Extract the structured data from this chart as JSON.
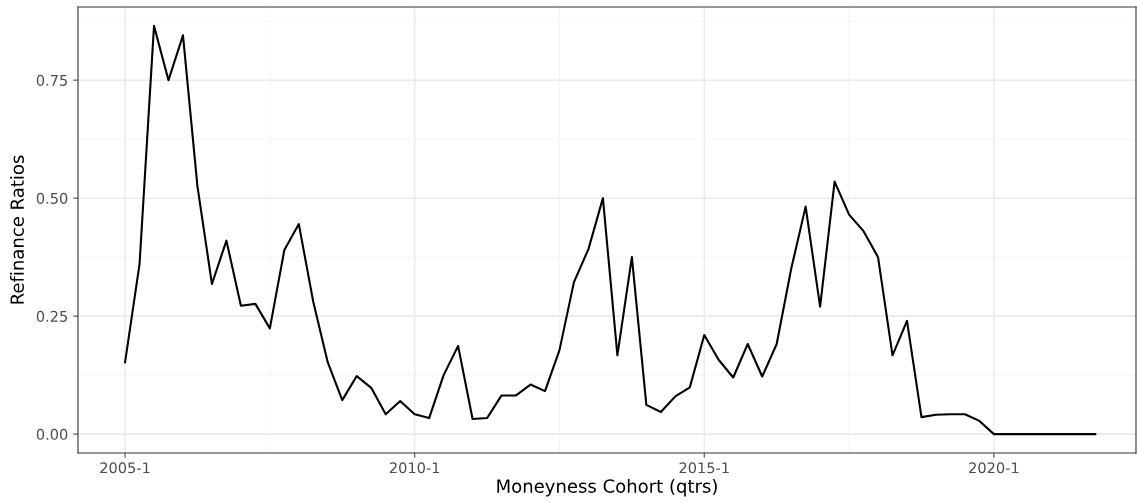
{
  "chart_data": {
    "type": "line",
    "xlabel": "Moneyness Cohort (qtrs)",
    "ylabel": "Refinance Ratios",
    "categories": [
      "2005-1",
      null,
      null,
      null,
      null,
      null,
      null,
      null,
      null,
      null,
      null,
      null,
      null,
      null,
      null,
      null,
      null,
      null,
      null,
      null,
      "2010-1",
      null,
      null,
      null,
      null,
      null,
      null,
      null,
      null,
      null,
      null,
      null,
      null,
      null,
      null,
      null,
      null,
      null,
      null,
      null,
      "2015-1",
      null,
      null,
      null,
      null,
      null,
      null,
      null,
      null,
      null,
      null,
      null,
      null,
      null,
      null,
      null,
      null,
      null,
      null,
      null,
      "2020-1",
      null,
      null,
      null,
      null,
      null,
      null,
      null
    ],
    "series": [
      {
        "color": "#000000",
        "values": [
          0.152,
          0.36,
          0.865,
          0.75,
          0.845,
          0.525,
          0.318,
          0.41,
          0.272,
          0.276,
          0.224,
          0.39,
          0.445,
          0.28,
          0.152,
          0.072,
          0.123,
          0.098,
          0.042,
          0.07,
          0.042,
          0.034,
          0.125,
          0.187,
          0.032,
          0.034,
          0.082,
          0.082,
          0.105,
          0.091,
          0.178,
          0.322,
          0.392,
          0.5,
          0.167,
          0.375,
          0.062,
          0.047,
          0.08,
          0.099,
          0.21,
          0.157,
          0.12,
          0.191,
          0.122,
          0.191,
          0.35,
          0.482,
          0.27,
          0.535,
          0.465,
          0.43,
          0.375,
          0.167,
          0.24,
          0.036,
          0.041,
          0.042,
          0.042,
          0.028,
          0,
          0,
          0,
          0,
          0,
          0,
          0,
          0
        ]
      }
    ],
    "ylim": [
      -0.04,
      0.905
    ],
    "yticks": [
      {
        "value": 0,
        "label": "0.00"
      },
      {
        "value": 0.25,
        "label": "0.25"
      },
      {
        "value": 0.5,
        "label": "0.50"
      },
      {
        "value": 0.75,
        "label": "0.75"
      }
    ],
    "grid": true,
    "marker": "none",
    "line_style": "solid"
  }
}
